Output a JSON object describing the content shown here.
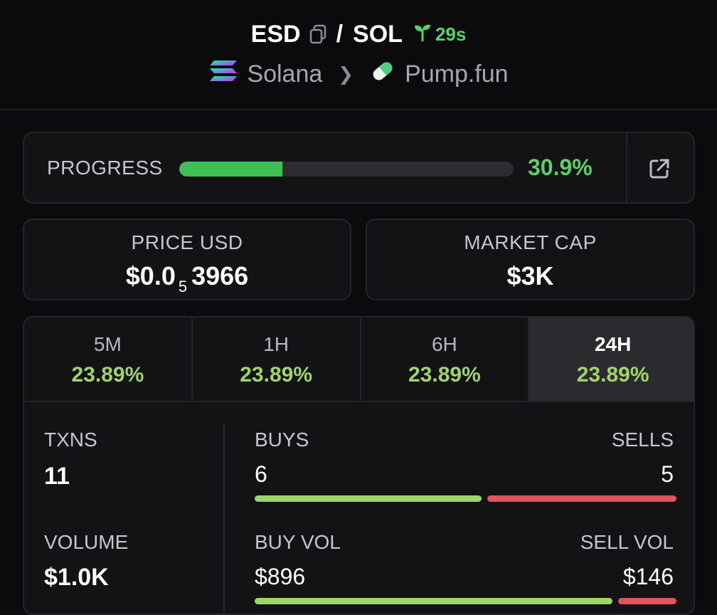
{
  "header": {
    "base_symbol": "ESD",
    "separator": "/",
    "quote_symbol": "SOL",
    "age": "29s",
    "chain": "Solana",
    "dex": "Pump.fun",
    "icons": {
      "copy": "copy-icon",
      "age": "sprout-icon",
      "chain": "solana-logo",
      "dex": "pill-icon",
      "chevron": "chevron-right-icon"
    },
    "colors": {
      "age": "#5bcf6a"
    }
  },
  "progress": {
    "label": "PROGRESS",
    "value_text": "30.9%",
    "fraction": 0.309,
    "icon": "external-link-icon",
    "colors": {
      "fill": "#3fbf55",
      "track": "#2c2c33"
    }
  },
  "price": {
    "label": "PRICE USD",
    "prefix": "$0.0",
    "zero_count": "5",
    "significant": "3966"
  },
  "market_cap": {
    "label": "MARKET CAP",
    "value": "$3K"
  },
  "timeframes": [
    {
      "label": "5M",
      "change": "23.89%",
      "active": false
    },
    {
      "label": "1H",
      "change": "23.89%",
      "active": false
    },
    {
      "label": "6H",
      "change": "23.89%",
      "active": false
    },
    {
      "label": "24H",
      "change": "23.89%",
      "active": true
    }
  ],
  "txns": {
    "label": "TXNS",
    "value": "11",
    "buys_label": "BUYS",
    "buys": "6",
    "sells_label": "SELLS",
    "sells": "5",
    "buy_fraction": 0.545
  },
  "volume": {
    "label": "VOLUME",
    "value": "$1.0K",
    "buy_label": "BUY VOL",
    "buy": "$896",
    "sell_label": "SELL VOL",
    "sell": "$146",
    "buy_fraction": 0.86
  },
  "colors": {
    "positive": "#9fd46b",
    "negative": "#e2535b"
  }
}
